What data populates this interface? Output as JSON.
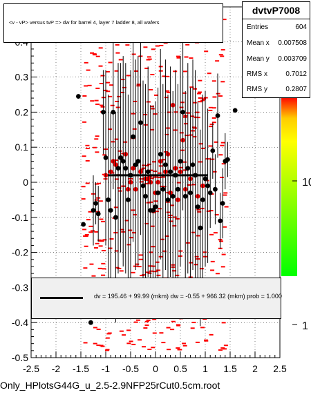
{
  "title": "<v - vP>       versus  tvP =>  dw for barrel 4, layer 7 ladder 8, all wafers",
  "stats": {
    "name": "dvtvP7008",
    "rows": [
      {
        "k": "Entries",
        "v": "604"
      },
      {
        "k": "Mean x",
        "v": "0.007508"
      },
      {
        "k": "Mean y",
        "v": "0.003709"
      },
      {
        "k": "RMS x",
        "v": "0.7012"
      },
      {
        "k": "RMS y",
        "v": "0.2807"
      }
    ]
  },
  "fit_text": "dv =  195.46 + 99.99 (mkm) dw =   -0.55 + 966.32 (mkm) prob = 1.000",
  "footer": "Only_HPlotsG44G_u_2.5-2.9NFP25rCut0.5cm.root",
  "colors": {
    "profile": "#000000",
    "scatter": "#ff0000",
    "colorbar_top": "#ff0000",
    "colorbar_bottom": "#00ff00"
  },
  "chart_data": {
    "type": "scatter",
    "xlim": [
      -2.5,
      2.5
    ],
    "ylim": [
      -0.5,
      0.5
    ],
    "x_ticks": [
      "-2.5",
      "-2",
      "-1.5",
      "-1",
      "-0.5",
      "0",
      "0.5",
      "1",
      "1.5",
      "2",
      "2.5"
    ],
    "y_ticks": [
      "-0.5",
      "-0.4",
      "-0.3",
      "-0.2",
      "-0.1",
      "0",
      "0.1",
      "0.2",
      "0.3",
      "0.4"
    ],
    "z_ticks": [
      "1",
      "10"
    ],
    "fit_line": {
      "x": [
        -0.95,
        1.05
      ],
      "y": [
        0.02,
        0.02
      ]
    },
    "profile": [
      {
        "x": -1.55,
        "y": 0.245,
        "e": 0.0
      },
      {
        "x": -1.45,
        "y": -0.12,
        "e": 0.0
      },
      {
        "x": -1.3,
        "y": -0.4,
        "e": 0.0
      },
      {
        "x": -1.25,
        "y": -0.08,
        "e": 0.1
      },
      {
        "x": -1.2,
        "y": -0.06,
        "e": 0.06
      },
      {
        "x": -1.15,
        "y": -0.09,
        "e": 0.08
      },
      {
        "x": -1.05,
        "y": 0.2,
        "e": 0.12
      },
      {
        "x": -1.0,
        "y": 0.07,
        "e": 0.25
      },
      {
        "x": -0.95,
        "y": -0.05,
        "e": 0.3
      },
      {
        "x": -0.9,
        "y": -0.08,
        "e": 0.28
      },
      {
        "x": -0.85,
        "y": 0.2,
        "e": 0.22
      },
      {
        "x": -0.8,
        "y": -0.1,
        "e": 0.3
      },
      {
        "x": -0.75,
        "y": 0.04,
        "e": 0.3
      },
      {
        "x": -0.7,
        "y": 0.07,
        "e": 0.27
      },
      {
        "x": -0.65,
        "y": 0.06,
        "e": 0.3
      },
      {
        "x": -0.6,
        "y": 0.04,
        "e": 0.3
      },
      {
        "x": -0.55,
        "y": -0.05,
        "e": 0.3
      },
      {
        "x": -0.5,
        "y": 0.02,
        "e": 0.3
      },
      {
        "x": -0.45,
        "y": 0.13,
        "e": 0.3
      },
      {
        "x": -0.4,
        "y": 0.05,
        "e": 0.3
      },
      {
        "x": -0.35,
        "y": 0.06,
        "e": 0.3
      },
      {
        "x": -0.3,
        "y": 0.17,
        "e": 0.32
      },
      {
        "x": -0.25,
        "y": -0.01,
        "e": 0.3
      },
      {
        "x": -0.2,
        "y": -0.04,
        "e": 0.32
      },
      {
        "x": -0.15,
        "y": 0.03,
        "e": 0.3
      },
      {
        "x": -0.1,
        "y": -0.08,
        "e": 0.3
      },
      {
        "x": -0.05,
        "y": -0.08,
        "e": 0.3
      },
      {
        "x": 0.0,
        "y": -0.07,
        "e": 0.3
      },
      {
        "x": 0.05,
        "y": -0.03,
        "e": 0.3
      },
      {
        "x": 0.1,
        "y": 0.08,
        "e": 0.3
      },
      {
        "x": 0.15,
        "y": -0.02,
        "e": 0.3
      },
      {
        "x": 0.2,
        "y": 0.05,
        "e": 0.3
      },
      {
        "x": 0.25,
        "y": -0.05,
        "e": 0.3
      },
      {
        "x": 0.3,
        "y": 0.03,
        "e": 0.3
      },
      {
        "x": 0.35,
        "y": -0.04,
        "e": 0.3
      },
      {
        "x": 0.4,
        "y": 0.02,
        "e": 0.3
      },
      {
        "x": 0.45,
        "y": -0.02,
        "e": 0.3
      },
      {
        "x": 0.5,
        "y": 0.06,
        "e": 0.3
      },
      {
        "x": 0.55,
        "y": 0.2,
        "e": 0.28
      },
      {
        "x": 0.6,
        "y": -0.04,
        "e": 0.3
      },
      {
        "x": 0.65,
        "y": 0.04,
        "e": 0.3
      },
      {
        "x": 0.7,
        "y": -0.03,
        "e": 0.3
      },
      {
        "x": 0.75,
        "y": 0.05,
        "e": 0.3
      },
      {
        "x": 0.8,
        "y": 0.02,
        "e": 0.3
      },
      {
        "x": 0.85,
        "y": -0.07,
        "e": 0.3
      },
      {
        "x": 0.9,
        "y": -0.13,
        "e": 0.28
      },
      {
        "x": 0.95,
        "y": -0.05,
        "e": 0.3
      },
      {
        "x": 1.0,
        "y": 0.01,
        "e": 0.25
      },
      {
        "x": 1.05,
        "y": -0.01,
        "e": 0.22
      },
      {
        "x": 1.1,
        "y": -0.03,
        "e": 0.1
      },
      {
        "x": 1.15,
        "y": 0.09,
        "e": 0.08
      },
      {
        "x": 1.2,
        "y": -0.02,
        "e": 0.1
      },
      {
        "x": 1.25,
        "y": 0.19,
        "e": 0.12
      },
      {
        "x": 1.3,
        "y": -0.11,
        "e": 0.08
      },
      {
        "x": 1.35,
        "y": -0.06,
        "e": 0.1
      },
      {
        "x": 1.4,
        "y": 0.06,
        "e": 0.08
      },
      {
        "x": 1.45,
        "y": 0.065,
        "e": 0.05
      },
      {
        "x": 1.6,
        "y": 0.205,
        "e": 0.0
      }
    ],
    "means": [
      {
        "x": -1.0,
        "y": 0.02
      },
      {
        "x": -0.9,
        "y": 0.03
      },
      {
        "x": -0.8,
        "y": 0.05
      },
      {
        "x": -0.7,
        "y": 0.07
      },
      {
        "x": -0.6,
        "y": 0.08
      },
      {
        "x": -0.5,
        "y": 0.0
      },
      {
        "x": -0.4,
        "y": -0.02
      },
      {
        "x": -0.3,
        "y": 0.03
      },
      {
        "x": -0.2,
        "y": 0.01
      },
      {
        "x": -0.1,
        "y": 0.0
      },
      {
        "x": 0.0,
        "y": -0.03
      },
      {
        "x": 0.1,
        "y": 0.06
      },
      {
        "x": 0.2,
        "y": 0.03
      },
      {
        "x": 0.3,
        "y": -0.03
      },
      {
        "x": 0.4,
        "y": 0.04
      },
      {
        "x": 0.5,
        "y": 0.03
      },
      {
        "x": 0.6,
        "y": -0.02
      },
      {
        "x": 0.7,
        "y": 0.01
      },
      {
        "x": 0.8,
        "y": 0.02
      },
      {
        "x": -0.85,
        "y": 0.06
      },
      {
        "x": 0.35,
        "y": 0.22
      },
      {
        "x": 0.95,
        "y": -0.01
      },
      {
        "x": -0.45,
        "y": 0.04
      },
      {
        "x": 0.55,
        "y": 0.12
      },
      {
        "x": -0.15,
        "y": 0.01
      },
      {
        "x": 0.25,
        "y": 0.08
      },
      {
        "x": 0.85,
        "y": -0.04
      },
      {
        "x": -0.55,
        "y": -0.02
      },
      {
        "x": 0.45,
        "y": -0.05
      },
      {
        "x": 0.05,
        "y": 0.0
      }
    ]
  }
}
